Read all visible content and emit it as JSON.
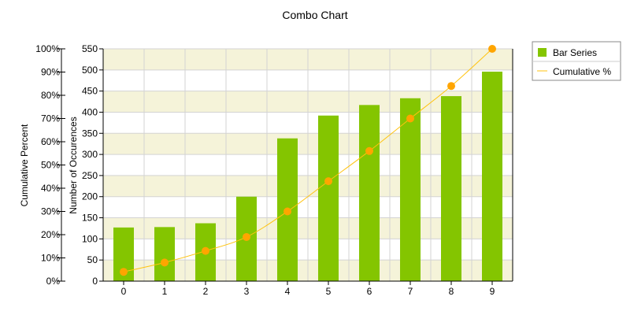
{
  "chart_data": {
    "type": "bar",
    "title": "Combo Chart",
    "categories": [
      "0",
      "1",
      "2",
      "3",
      "4",
      "5",
      "6",
      "7",
      "8",
      "9"
    ],
    "series": [
      {
        "name": "Bar Series",
        "type": "bar",
        "axis": "left-inner",
        "color": "#84c500",
        "values": [
          127,
          128,
          137,
          200,
          338,
          392,
          417,
          433,
          438,
          496
        ]
      },
      {
        "name": "Cumulative %",
        "type": "line",
        "axis": "left-outer",
        "color": "#ffc30f",
        "marker_color": "#ffa500",
        "values": [
          4,
          8,
          13,
          19,
          30,
          43,
          56,
          70,
          84,
          100
        ]
      }
    ],
    "y_inner": {
      "label": "Number of Occurences",
      "range": [
        0,
        550
      ],
      "ticks": [
        "0",
        "50",
        "100",
        "150",
        "200",
        "250",
        "300",
        "350",
        "400",
        "450",
        "500",
        "550"
      ]
    },
    "y_outer": {
      "label": "Cumulative Percent",
      "range": [
        0,
        100
      ],
      "ticks": [
        "0%",
        "10%",
        "20%",
        "30%",
        "40%",
        "50%",
        "60%",
        "70%",
        "80%",
        "90%",
        "100%"
      ]
    },
    "legend_position": "right",
    "grid": true,
    "band_color": "#f5f3d9"
  }
}
